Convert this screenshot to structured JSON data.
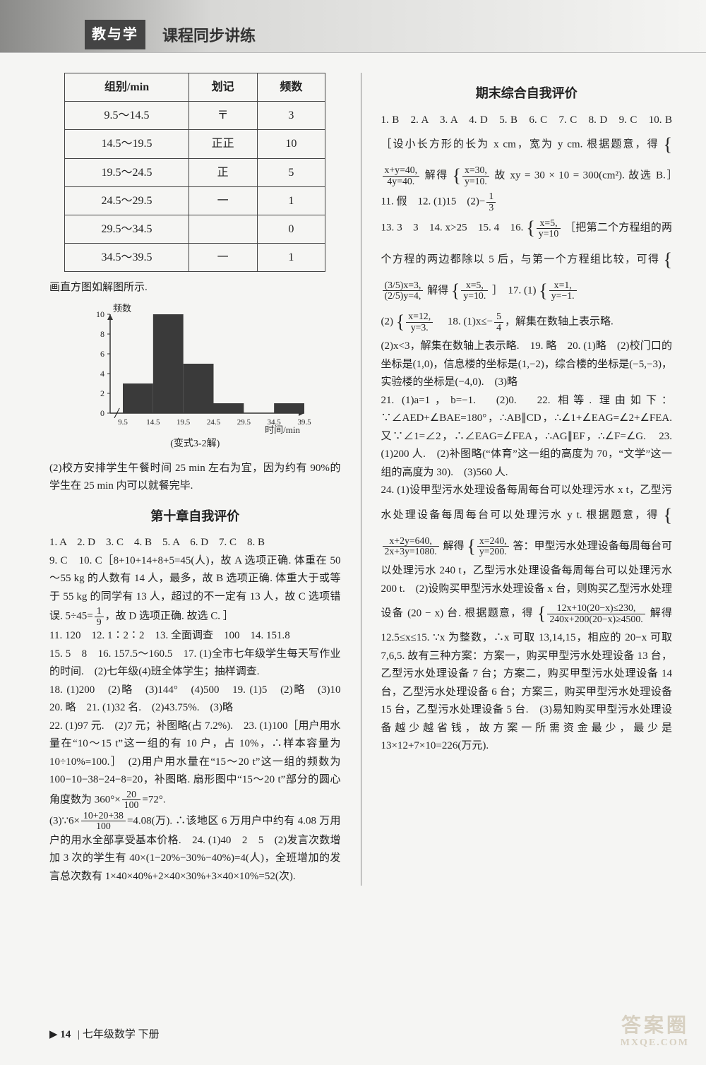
{
  "header": {
    "badge": "教与学",
    "title": "课程同步讲练"
  },
  "table": {
    "columns": [
      "组别/min",
      "划记",
      "频数"
    ],
    "rows": [
      [
        "9.5～14.5",
        "〒",
        "3"
      ],
      [
        "14.5～19.5",
        "正正",
        "10"
      ],
      [
        "19.5～24.5",
        "正",
        "5"
      ],
      [
        "24.5～29.5",
        "一",
        "1"
      ],
      [
        "29.5～34.5",
        "",
        "0"
      ],
      [
        "34.5～39.5",
        "一",
        "1"
      ]
    ]
  },
  "caption_hist": "画直方图如解图所示.",
  "histogram": {
    "type": "bar",
    "y_label": "频数",
    "x_label": "时间/min",
    "x_ticks": [
      "9.5",
      "14.5",
      "19.5",
      "24.5",
      "29.5",
      "34.5",
      "39.5"
    ],
    "y_ticks": [
      0,
      2,
      4,
      6,
      8,
      10
    ],
    "values": [
      3,
      10,
      5,
      1,
      0,
      1
    ],
    "bar_color": "#3a3a3a",
    "axis_color": "#333",
    "bg": "#f5f5f3",
    "sub_caption": "(变式3-2解)"
  },
  "left_para1": "(2)校方安排学生午餐时间 25 min 左右为宜，因为约有 90%的学生在 25 min 内可以就餐完毕.",
  "section_ch10": "第十章自我评价",
  "ch10_line1": "1. A　2. D　3. C　4. B　5. A　6. D　7. C　8. B",
  "ch10_line2_a": "9. C　10. C［8+10+14+8+5=45(人)，故 A 选项正确. 体重在 50～55 kg 的人数有 14 人，最多，故 B 选项正确. 体重大于或等于 55 kg 的同学有 13 人，超过的不一定有 13 人，故 C 选项错误. 5÷45=",
  "ch10_line2_b": "，故 D 选项正确. 故选 C. ］",
  "ch10_line3": "11. 120　12. 1∶2∶2　13. 全面调查　100　14. 151.8",
  "ch10_line4": "15. 5　8　16. 157.5～160.5　17. (1)全市七年级学生每天写作业的时间.　(2)七年级(4)班全体学生；抽样调查.",
  "ch10_line5": "18. (1)200　(2)略　(3)144°　(4)500　19. (1)5　(2)略　(3)10　20. 略　21. (1)32 名.　(2)43.75%.　(3)略",
  "ch10_line6_a": "22. (1)97 元.　(2)7 元；补图略(占 7.2%).　23. (1)100［用户用水量在“10～15 t”这一组的有 10 户，占 10%，∴样本容量为 10÷10%=100.］　(2)用户用水量在“15～20 t”这一组的频数为 100−10−38−24−8=20，补图略. 扇形图中“15～20 t”部分的圆心角度数为 360°×",
  "ch10_line6_b": "=72°.",
  "ch10_line7_a": "(3)∵6×",
  "ch10_line7_b": "=4.08(万). ∴该地区 6 万用户中约有 4.08 万用户的用水全部享受基本价格.　24. (1)40　2　5　(2)发言次数增加 3 次的学生有 40×(1−20%−30%−40%)=4(人)，全班增加的发言总次数有 1×40×40%+2×40×30%+3×40×10%=52(次).",
  "section_final": "期末综合自我评价",
  "final_p1_a": "1. B　2. A　3. A　4. D　5. B　6. C　7. C　8. D　9. C　10. B［设小长方形的长为 x cm，宽为 y cm. 根据题意，得 ",
  "final_p1_b": " 解得 ",
  "final_p1_c": " 故 xy = 30 × 10 = 300(cm²). 故选 B.］　11. 假　12. (1)15　(2)−",
  "final_p2_a": "13. 3　3　14. x>25　15. 4　16. ",
  "final_p2_b": "［把第二个方程组的两个方程的两边都除以 5 后，与第一个方程组比较，可得",
  "final_p2_c": " 解得",
  "final_p2_d": "］　17. (1) ",
  "final_p3_a": "(2)",
  "final_p3_b": "　18. (1)x≤−",
  "final_p3_c": "，解集在数轴上表示略.",
  "final_p4": "(2)x<3，解集在数轴上表示略.　19. 略　20. (1)略　(2)校门口的坐标是(1,0)，信息楼的坐标是(1,−2)，综合楼的坐标是(−5,−3)，实验楼的坐标是(−4,0).　(3)略",
  "final_p5": "21. (1)a=1，b=−1.　(2)0.　22. 相等. 理由如下：∵∠AED+∠BAE=180°，∴AB∥CD，∴∠1+∠EAG=∠2+∠FEA. 又∵∠1=∠2，∴∠EAG=∠FEA，∴AG∥EF，∴∠F=∠G.　23. (1)200 人.　(2)补图略(“体育”这一组的高度为 70，“文学”这一组的高度为 30).　(3)560 人.",
  "final_p6_a": "24. (1)设甲型污水处理设备每周每台可以处理污水 x t，乙型污水处理设备每周每台可以处理污水 y t. 根据题意，得",
  "final_p6_b": " 解得",
  "final_p6_c": " 答：甲型污水处理设备每周每台可以处理污水 240 t，乙型污水处理设备每周每台可以处理污水 200 t.　(2)设购买甲型污水处理设备 x 台，则购买乙型污水处理设备 (20 − x) 台. 根据题意，得",
  "final_p6_d": " 解得 12.5≤x≤15. ∵x 为整数，∴x 可取 13,14,15，相应的 20−x 可取 7,6,5. 故有三种方案：方案一，购买甲型污水处理设备 13 台，乙型污水处理设备 7 台；方案二，购买甲型污水处理设备 14 台，乙型污水处理设备 6 台；方案三，购买甲型污水处理设备 15 台，乙型污水处理设备 5 台.　(3)易知购买甲型污水处理设备越少越省钱，故方案一所需资金最少，最少是 13×12+7×10=226(万元).",
  "eq": {
    "sys1a": "x+y=40,",
    "sys1b": "4y=40.",
    "sys2a": "x=30,",
    "sys2b": "y=10.",
    "sys3a": "x=5,",
    "sys3b": "y=10",
    "sys4a": "(3/5)x=3,",
    "sys4b": "(2/5)y=4,",
    "sys5a": "x=5,",
    "sys5b": "y=10.",
    "sys6a": "x=1,",
    "sys6b": "y=−1.",
    "sys7a": "x=12,",
    "sys7b": "y=3.",
    "sys8a": "x+2y=640,",
    "sys8b": "2x+3y=1080.",
    "sys9a": "x=240,",
    "sys9b": "y=200.",
    "sys10a": "12x+10(20−x)≤230,",
    "sys10b": "240x+200(20−x)≥4500."
  },
  "footer": {
    "page": "14",
    "text": "七年级数学 下册"
  },
  "watermark": {
    "main": "答案圈",
    "sub": "MXQE.COM"
  }
}
